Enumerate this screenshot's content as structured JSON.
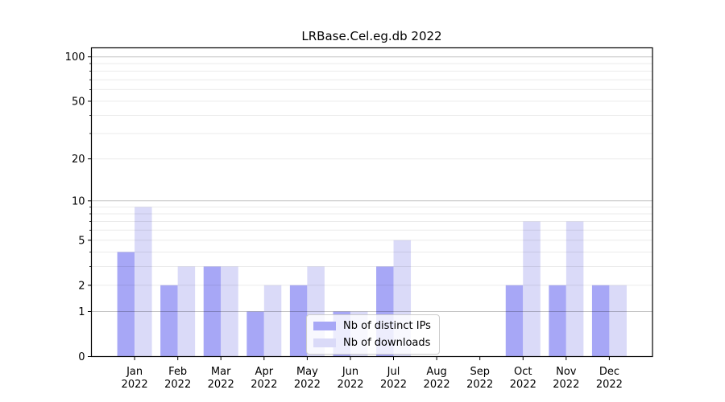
{
  "chart_data": {
    "type": "bar",
    "title": "LRBase.Cel.eg.db 2022",
    "categories": [
      "Jan",
      "Feb",
      "Mar",
      "Apr",
      "May",
      "Jun",
      "Jul",
      "Aug",
      "Sep",
      "Oct",
      "Nov",
      "Dec"
    ],
    "category_year": "2022",
    "series": [
      {
        "name": "Nb of distinct IPs",
        "color": "#a7a7f6",
        "values": [
          4,
          2,
          3,
          1,
          2,
          1,
          3,
          0,
          0,
          2,
          2,
          2
        ]
      },
      {
        "name": "Nb of downloads",
        "color": "#dadaf8",
        "values": [
          9,
          3,
          3,
          2,
          3,
          1,
          5,
          0,
          0,
          7,
          7,
          2
        ]
      }
    ],
    "xlabel": "",
    "ylabel": "",
    "yscale": "log10(value+1)",
    "ylim": [
      0,
      115
    ],
    "yticks": [
      0,
      1,
      2,
      5,
      10,
      20,
      50,
      100
    ],
    "major_gridlines": [
      1,
      10,
      100
    ],
    "minor_gridlines": [
      2,
      3,
      4,
      5,
      6,
      7,
      8,
      9,
      20,
      30,
      40,
      50,
      60,
      70,
      80,
      90
    ],
    "grid": true,
    "legend_position": "inside bottom-center"
  }
}
